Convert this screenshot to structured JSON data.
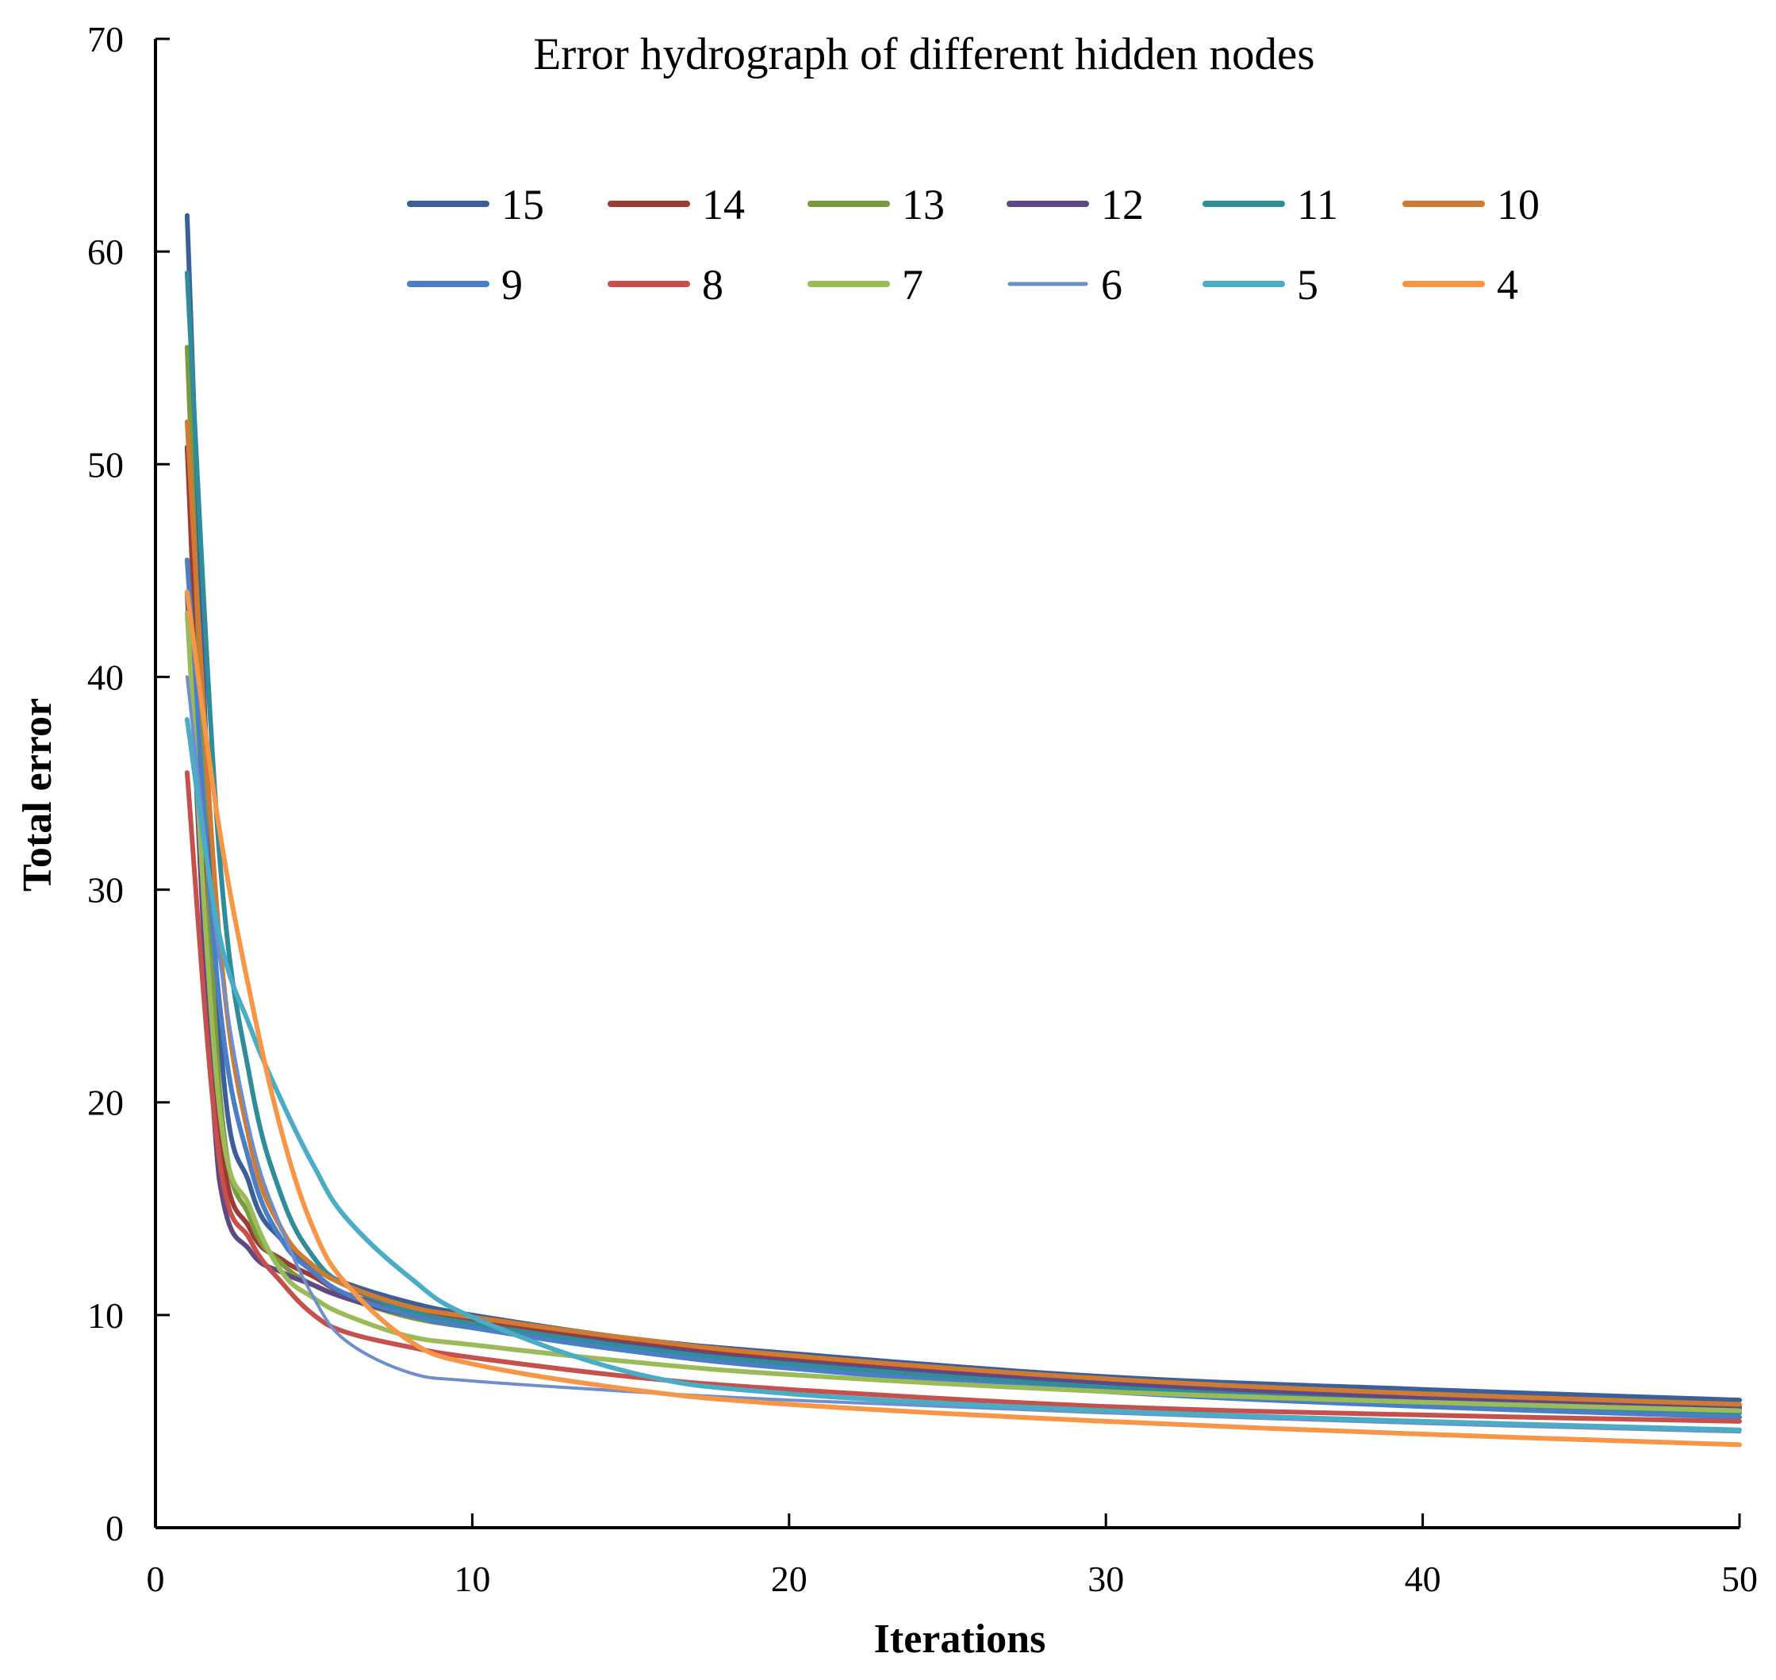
{
  "chart_data": {
    "type": "line",
    "title": "Error hydrograph of different hidden nodes",
    "xlabel": "Iterations",
    "ylabel": "Total error",
    "xlim": [
      0,
      50
    ],
    "ylim": [
      0,
      70
    ],
    "x_ticks": [
      0,
      10,
      20,
      30,
      40,
      50
    ],
    "y_ticks": [
      0,
      10,
      20,
      30,
      40,
      50,
      60,
      70
    ],
    "x_tick_labels": [
      "0",
      "10",
      "20",
      "30",
      "40",
      "50"
    ],
    "y_tick_labels": [
      "0",
      "10",
      "20",
      "30",
      "40",
      "50",
      "60",
      "70"
    ],
    "grid": false,
    "legend_position": "top-center",
    "x": [
      1,
      2,
      3,
      4,
      5,
      6,
      8,
      10,
      15,
      20,
      30,
      40,
      50
    ],
    "series": [
      {
        "name": "15",
        "color": "#3A5F9A",
        "values": [
          61.7,
          24,
          16,
          13.5,
          12.2,
          11.5,
          10.6,
          10.0,
          8.9,
          8.2,
          7.1,
          6.5,
          6.0
        ]
      },
      {
        "name": "14",
        "color": "#9E3A36",
        "values": [
          50.8,
          19,
          14,
          12.6,
          11.8,
          11.0,
          10.2,
          9.7,
          8.7,
          7.9,
          6.9,
          6.2,
          5.7
        ]
      },
      {
        "name": "13",
        "color": "#7A9A3F",
        "values": [
          55.5,
          21,
          14.5,
          12.4,
          11.4,
          10.8,
          9.9,
          9.4,
          8.4,
          7.7,
          6.7,
          6.0,
          5.5
        ]
      },
      {
        "name": "12",
        "color": "#5E4985",
        "values": [
          44.0,
          16.5,
          13.0,
          12.0,
          11.4,
          10.8,
          10.0,
          9.5,
          8.6,
          7.8,
          6.8,
          6.1,
          5.6
        ]
      },
      {
        "name": "11",
        "color": "#2F8C98",
        "values": [
          59.0,
          32,
          21,
          15.5,
          12.7,
          11.4,
          10.2,
          9.6,
          8.5,
          7.7,
          6.6,
          5.9,
          5.4
        ]
      },
      {
        "name": "10",
        "color": "#D07A32",
        "values": [
          52.0,
          28,
          18,
          14.0,
          12.3,
          11.4,
          10.4,
          9.9,
          8.9,
          8.1,
          7.0,
          6.3,
          5.8
        ]
      },
      {
        "name": "9",
        "color": "#4A7FC6",
        "values": [
          45.5,
          25,
          17,
          13.5,
          12.0,
          11.0,
          10.0,
          9.4,
          8.3,
          7.5,
          6.4,
          5.7,
          5.2
        ]
      },
      {
        "name": "8",
        "color": "#C5504C",
        "values": [
          35.5,
          17.5,
          13.5,
          11.5,
          10.0,
          9.2,
          8.5,
          8.0,
          7.1,
          6.5,
          5.7,
          5.3,
          5.0
        ]
      },
      {
        "name": "7",
        "color": "#9BBB59",
        "values": [
          43.0,
          20,
          15.0,
          12.0,
          10.8,
          10.0,
          9.0,
          8.6,
          7.8,
          7.2,
          6.4,
          5.9,
          5.5
        ]
      },
      {
        "name": "6",
        "color": "#6E8FCC",
        "values": [
          40.0,
          27,
          18.5,
          14.0,
          10.8,
          8.8,
          7.3,
          6.9,
          6.4,
          6.0,
          5.4,
          4.9,
          4.5
        ]
      },
      {
        "name": "5",
        "color": "#4BACC6",
        "values": [
          38.0,
          28,
          23.5,
          20.0,
          17.0,
          14.6,
          11.8,
          9.9,
          7.3,
          6.3,
          5.5,
          5.0,
          4.6
        ]
      },
      {
        "name": "4",
        "color": "#F79646",
        "values": [
          44.0,
          33,
          25.0,
          18.5,
          14.0,
          11.5,
          8.8,
          7.7,
          6.5,
          5.8,
          5.0,
          4.4,
          3.9
        ]
      }
    ]
  }
}
